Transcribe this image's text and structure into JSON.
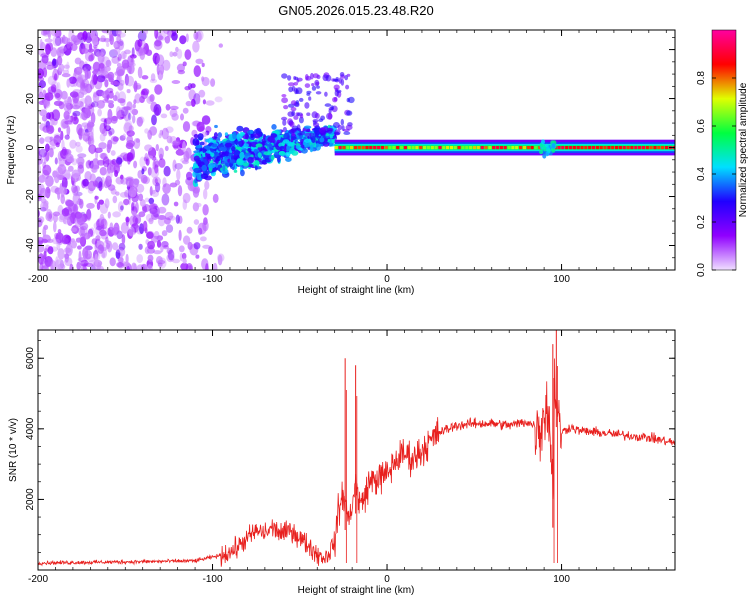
{
  "chart_data": [
    {
      "type": "heatmap",
      "title": "GN05.2026.015.23.48.R20",
      "xlabel": "Height of straight line (km)",
      "ylabel": "Frequency (Hz)",
      "xlim": [
        -200,
        165
      ],
      "ylim": [
        -50,
        48
      ],
      "xticks": [
        -200,
        -100,
        0,
        100
      ],
      "xtick_labels": [
        "-200",
        "-100",
        "0",
        "100"
      ],
      "yticks": [
        -40,
        -20,
        0,
        20,
        40
      ],
      "ytick_labels": [
        "-40",
        "-20",
        "0",
        "20",
        "40"
      ],
      "colorbar": {
        "label": "Normalized spectral amplitude",
        "range": [
          0,
          1
        ],
        "ticks": [
          0,
          0.2,
          0.4,
          0.6,
          0.8
        ],
        "tick_labels": [
          "0.0",
          "0.2",
          "0.4",
          "0.6",
          "0.8"
        ],
        "stops": [
          "#f0e0ff",
          "#9000ff",
          "#2000ff",
          "#00e0ff",
          "#00ff40",
          "#e0ff00",
          "#ff0000",
          "#ff00a0"
        ]
      },
      "regions": [
        {
          "name": "noise",
          "x": [
            -200,
            -95
          ],
          "y": [
            -50,
            48
          ],
          "level": 0.2
        },
        {
          "name": "transition",
          "x": [
            -110,
            -30
          ],
          "center_y": [
            -5,
            5
          ],
          "spread": [
            10,
            3
          ],
          "level": 0.45
        },
        {
          "name": "line",
          "x": [
            -30,
            165
          ],
          "center_y": 0,
          "level": 0.85
        }
      ]
    },
    {
      "type": "line",
      "xlabel": "Height of straight line (km)",
      "ylabel": "SNR (10 * v/v)",
      "xlim": [
        -200,
        165
      ],
      "ylim": [
        0,
        6800
      ],
      "xticks": [
        -200,
        -100,
        0,
        100
      ],
      "xtick_labels": [
        "-200",
        "-100",
        "0",
        "100"
      ],
      "yticks": [
        2000,
        4000,
        6000
      ],
      "ytick_labels": [
        "2000",
        "4000",
        "6000"
      ],
      "color": "#e8201e",
      "series": [
        {
          "name": "SNR",
          "x": [
            -200,
            -150,
            -110,
            -95,
            -88,
            -80,
            -75,
            -70,
            -65,
            -60,
            -55,
            -50,
            -45,
            -40,
            -35,
            -30,
            -28,
            -25,
            -22,
            -20,
            -18,
            -15,
            -10,
            -5,
            0,
            5,
            10,
            15,
            20,
            25,
            30,
            40,
            50,
            60,
            70,
            80,
            88,
            90,
            92,
            94,
            95,
            96,
            98,
            100,
            105,
            110,
            120,
            130,
            140,
            150,
            160,
            165
          ],
          "y": [
            200,
            230,
            260,
            420,
            550,
            900,
            1100,
            1050,
            1200,
            1000,
            1150,
            900,
            700,
            450,
            350,
            800,
            1600,
            2200,
            1400,
            1900,
            2400,
            1800,
            2500,
            2600,
            2700,
            3100,
            3300,
            3150,
            3400,
            3650,
            3900,
            4100,
            4150,
            4150,
            4100,
            4200,
            4000,
            4500,
            4600,
            3500,
            2000,
            5500,
            4200,
            3900,
            4050,
            3950,
            3900,
            3850,
            3800,
            3750,
            3650,
            3600
          ]
        }
      ],
      "spikes": [
        {
          "x": -24,
          "y": 6000
        },
        {
          "x": -18,
          "y": 5800
        },
        {
          "x": 95,
          "y": 6400
        },
        {
          "x": 97,
          "y": 6800
        }
      ]
    }
  ]
}
